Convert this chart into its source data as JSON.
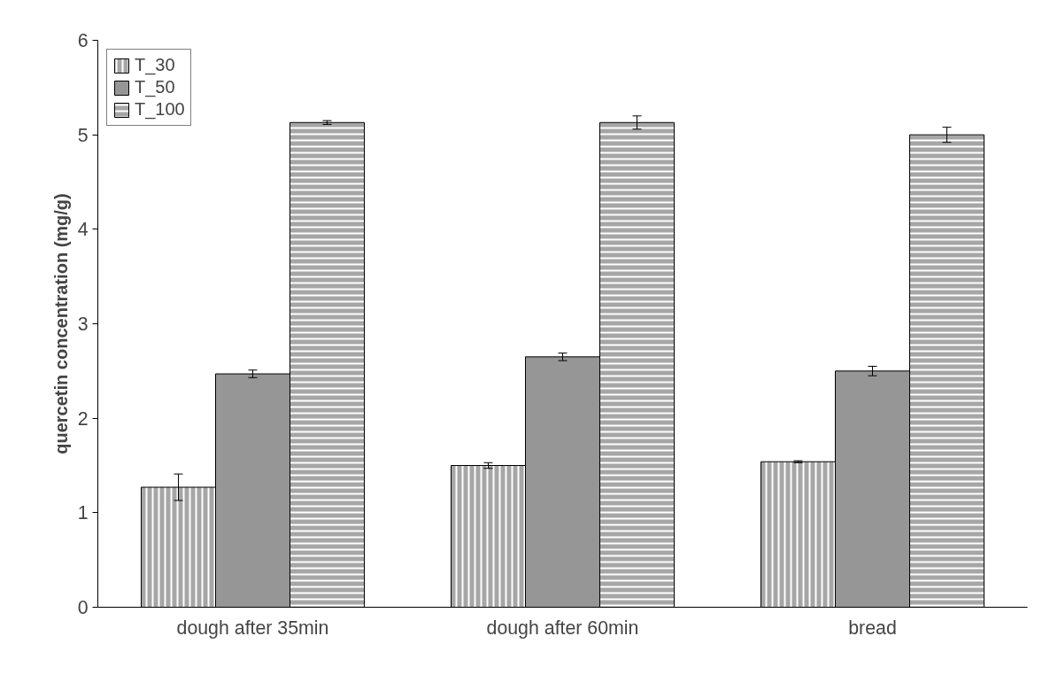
{
  "chart_data": {
    "type": "bar",
    "ylabel": "quercetin concentration (mg/g)",
    "categories": [
      "dough after 35min",
      "dough after 60min",
      "bread"
    ],
    "series": [
      {
        "name": "T_30",
        "color": "#a6a6a6",
        "values": [
          1.27,
          1.5,
          1.54
        ],
        "errors": [
          0.14,
          0.03,
          0.01
        ]
      },
      {
        "name": "T_50",
        "color": "#969696",
        "values": [
          2.47,
          2.65,
          2.5
        ],
        "errors": [
          0.04,
          0.04,
          0.05
        ]
      },
      {
        "name": "T_100",
        "color": "#a6a6a6",
        "values": [
          5.13,
          5.13,
          5.0
        ],
        "errors": [
          0.02,
          0.07,
          0.08
        ]
      }
    ],
    "ylim": [
      0,
      6
    ],
    "yticks": [
      0,
      1,
      2,
      3,
      4,
      5,
      6
    ],
    "grid": false,
    "legend": "top left"
  }
}
